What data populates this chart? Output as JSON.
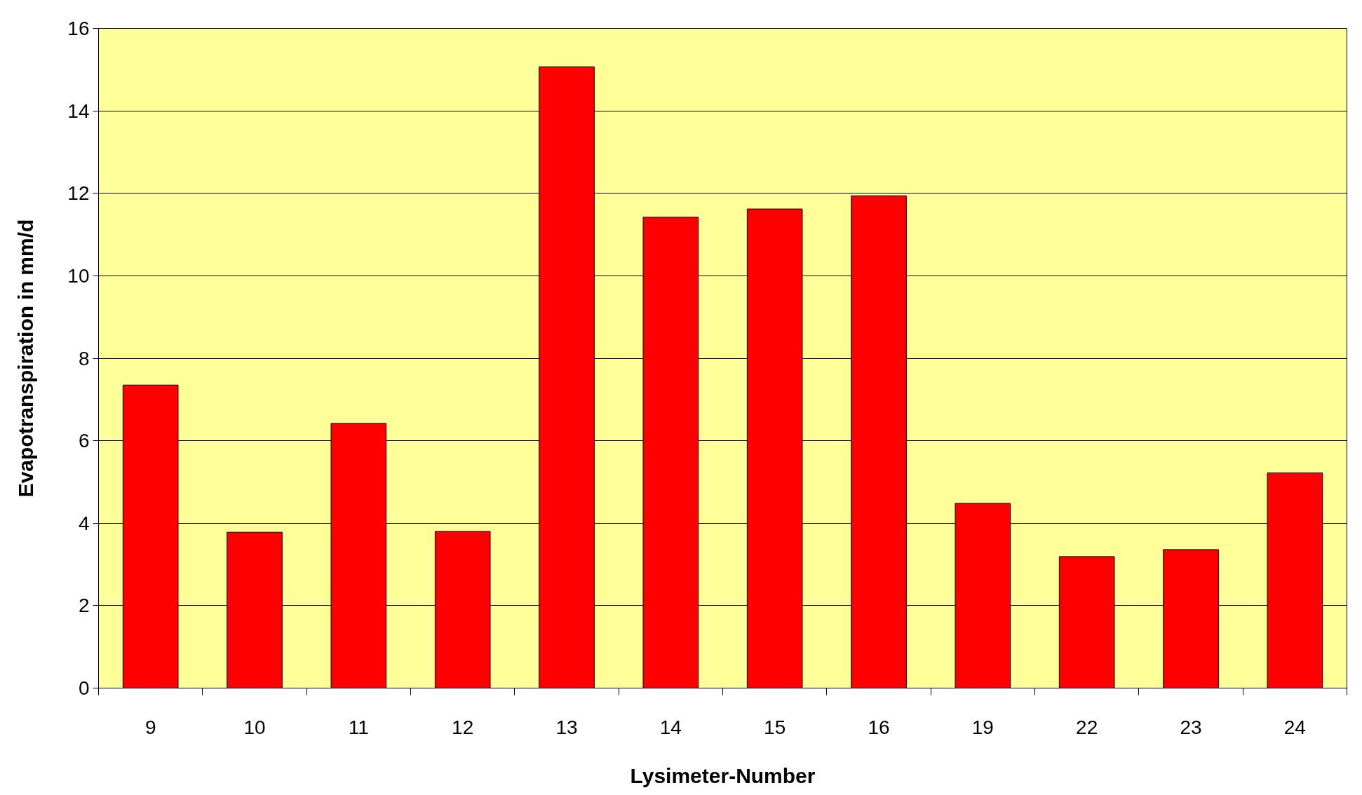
{
  "chart_data": {
    "type": "bar",
    "xlabel": "Lysimeter-Number",
    "ylabel": "Evapotranspiration in mm/d",
    "categories": [
      "9",
      "10",
      "11",
      "12",
      "13",
      "14",
      "15",
      "16",
      "19",
      "22",
      "23",
      "24"
    ],
    "values": [
      7.35,
      3.78,
      6.42,
      3.8,
      15.07,
      11.42,
      11.62,
      11.94,
      4.48,
      3.19,
      3.36,
      5.22
    ],
    "color": "#ff0000",
    "ylim": [
      0,
      16
    ],
    "yticks": [
      0,
      2,
      4,
      6,
      8,
      10,
      12,
      14,
      16
    ],
    "grid": "y"
  }
}
